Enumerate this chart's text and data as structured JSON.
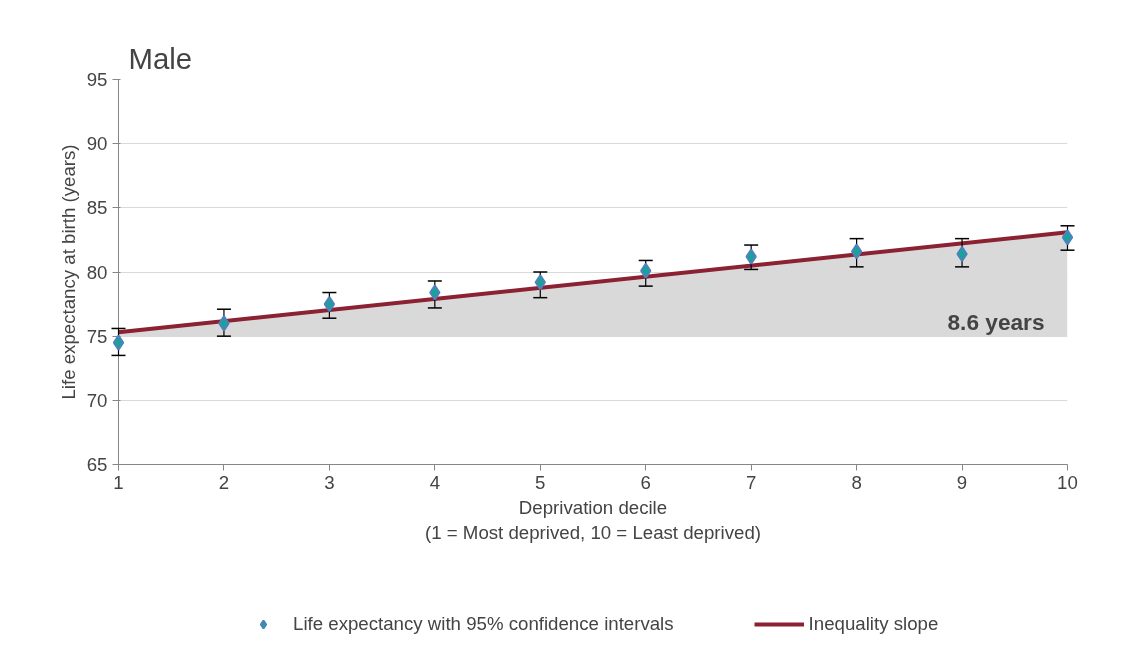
{
  "chart_data": {
    "type": "scatter",
    "title": "Male",
    "xlabel": "Deprivation decile\n(1 = Most deprived, 10 = Least deprived)",
    "ylabel": "Life expectancy at birth (years)",
    "x": [
      1,
      2,
      3,
      4,
      5,
      6,
      7,
      8,
      9,
      10
    ],
    "series": [
      {
        "name": "Life expectancy with 95% confidence intervals",
        "marker": "diamond",
        "color": "#17a398",
        "values": [
          74.5,
          76.0,
          77.5,
          78.4,
          79.2,
          80.1,
          81.2,
          81.6,
          81.4,
          82.7
        ],
        "errors": [
          [
            73.5,
            75.6
          ],
          [
            75.0,
            77.1
          ],
          [
            76.4,
            78.4
          ],
          [
            77.2,
            79.3
          ],
          [
            78.0,
            80.0
          ],
          [
            78.9,
            80.9
          ],
          [
            80.2,
            82.1
          ],
          [
            80.4,
            82.6
          ],
          [
            80.4,
            82.6
          ],
          [
            81.7,
            83.6
          ]
        ]
      },
      {
        "name": "Inequality slope",
        "type": "line",
        "color": "#8b2131",
        "x": [
          1,
          10
        ],
        "values": [
          75.3,
          83.1
        ],
        "lower": [
          75,
          75
        ],
        "upper": [
          75.3,
          83.1
        ]
      }
    ],
    "annotations": [
      "8.6 years"
    ],
    "xlim": [
      1,
      10
    ],
    "xticks": [
      1,
      2,
      3,
      4,
      5,
      6,
      7,
      8,
      9,
      10
    ],
    "ylim": [
      65,
      95
    ],
    "yticks": [
      65,
      70,
      75,
      80,
      85,
      90,
      95
    ],
    "grid": "y",
    "legend": "bottom",
    "line_style": "solid"
  }
}
